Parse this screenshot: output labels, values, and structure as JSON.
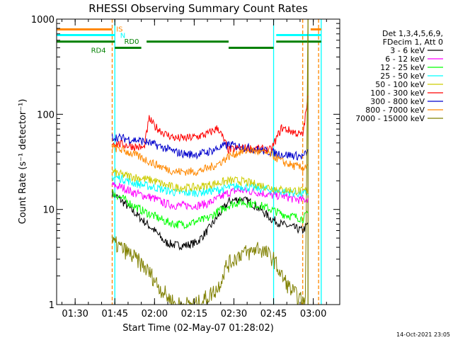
{
  "page": {
    "footer_date": "14-Oct-2021 23:05"
  },
  "chart_data": {
    "type": "line",
    "title": "RHESSI Observing Summary Count Rates",
    "xlabel": "Start Time (02-May-07 01:28:02)",
    "ylabel": "Count Rate (s⁻¹ detector⁻¹)",
    "y_scale": "log",
    "xlim": [
      "01:23",
      "03:10"
    ],
    "ylim": [
      1,
      1000
    ],
    "x_ticks": [
      "01:30",
      "01:45",
      "02:00",
      "02:15",
      "02:30",
      "02:45",
      "03:00"
    ],
    "y_ticks": [
      {
        "value": 1,
        "label": "1"
      },
      {
        "value": 10,
        "label": "10"
      },
      {
        "value": 100,
        "label": "100"
      },
      {
        "value": 1000,
        "label": "1000"
      }
    ],
    "legend": {
      "placement": "right",
      "header": [
        "Det 1,3,4,5,6,9,",
        "FDecim 1, Att 0"
      ]
    },
    "series": [
      {
        "name": "3 - 6 keV",
        "color": "#000000",
        "x": [
          "01:44",
          "01:48",
          "01:52",
          "01:56",
          "02:00",
          "02:04",
          "02:08",
          "02:12",
          "02:16",
          "02:20",
          "02:24",
          "02:28",
          "02:32",
          "02:36",
          "02:40",
          "02:44",
          "02:48",
          "02:52",
          "02:56",
          "02:58"
        ],
        "y": [
          15,
          12,
          9.5,
          7.5,
          6,
          4.5,
          4.2,
          4.2,
          4.5,
          6,
          8.5,
          12,
          13,
          12,
          10,
          8,
          7,
          6.5,
          6,
          7
        ]
      },
      {
        "name": "6 - 12 keV",
        "color": "#ff00ff",
        "x": [
          "01:44",
          "01:48",
          "01:52",
          "01:56",
          "02:00",
          "02:04",
          "02:08",
          "02:12",
          "02:16",
          "02:20",
          "02:24",
          "02:28",
          "02:32",
          "02:36",
          "02:40",
          "02:44",
          "02:48",
          "02:52",
          "02:56",
          "02:58"
        ],
        "y": [
          18,
          17,
          15,
          14,
          13,
          11.5,
          11,
          11,
          11,
          11.5,
          13,
          15,
          16,
          15.5,
          15,
          14,
          14,
          13,
          12.5,
          13
        ]
      },
      {
        "name": "12 - 25 keV",
        "color": "#00ff00",
        "x": [
          "01:44",
          "01:48",
          "01:52",
          "01:56",
          "02:00",
          "02:04",
          "02:08",
          "02:12",
          "02:16",
          "02:20",
          "02:24",
          "02:28",
          "02:32",
          "02:36",
          "02:40",
          "02:44",
          "02:48",
          "02:52",
          "02:56",
          "02:58"
        ],
        "y": [
          15,
          13,
          11,
          9.5,
          8.5,
          7.5,
          7,
          7,
          7.5,
          8,
          9.5,
          11,
          12,
          11.5,
          11,
          10,
          9,
          8.5,
          8,
          9
        ]
      },
      {
        "name": "25 - 50 keV",
        "color": "#00ffff",
        "x": [
          "01:44",
          "01:48",
          "01:52",
          "01:56",
          "02:00",
          "02:04",
          "02:08",
          "02:12",
          "02:16",
          "02:20",
          "02:24",
          "02:28",
          "02:32",
          "02:36",
          "02:40",
          "02:44",
          "02:48",
          "02:52",
          "02:56",
          "02:58"
        ],
        "y": [
          22,
          21,
          19,
          18,
          17,
          16,
          15,
          15,
          15,
          15.5,
          16,
          17,
          17.5,
          17,
          16.5,
          16,
          15.5,
          15,
          14.5,
          15
        ]
      },
      {
        "name": "50 - 100 keV",
        "color": "#cccc00",
        "x": [
          "01:44",
          "01:48",
          "01:52",
          "01:56",
          "02:00",
          "02:04",
          "02:08",
          "02:12",
          "02:16",
          "02:20",
          "02:24",
          "02:28",
          "02:32",
          "02:36",
          "02:40",
          "02:44",
          "02:48",
          "02:52",
          "02:56",
          "02:58"
        ],
        "y": [
          25,
          23,
          22,
          21,
          20,
          18,
          17,
          17,
          17,
          18,
          19,
          20,
          20,
          19,
          18,
          17,
          16,
          16,
          15.5,
          16
        ]
      },
      {
        "name": "100 - 300 keV",
        "color": "#ff0000",
        "x": [
          "01:44",
          "01:48",
          "01:52",
          "01:56",
          "01:58",
          "02:00",
          "02:04",
          "02:08",
          "02:12",
          "02:16",
          "02:20",
          "02:24",
          "02:28",
          "02:32",
          "02:36",
          "02:40",
          "02:44",
          "02:48",
          "02:52",
          "02:56",
          "02:58"
        ],
        "y": [
          50,
          48,
          46,
          44,
          90,
          75,
          62,
          56,
          56,
          58,
          62,
          72,
          42,
          44,
          44,
          43,
          42,
          72,
          66,
          60,
          150
        ]
      },
      {
        "name": "300 - 800 keV",
        "color": "#0000cc",
        "x": [
          "01:44",
          "01:48",
          "01:52",
          "01:56",
          "02:00",
          "02:04",
          "02:08",
          "02:12",
          "02:16",
          "02:20",
          "02:24",
          "02:28",
          "02:32",
          "02:36",
          "02:40",
          "02:44",
          "02:48",
          "02:52",
          "02:56",
          "02:58"
        ],
        "y": [
          58,
          56,
          54,
          52,
          48,
          44,
          40,
          38,
          38,
          40,
          44,
          48,
          46,
          44,
          42,
          40,
          38,
          37,
          36,
          40
        ]
      },
      {
        "name": "800 - 7000 keV",
        "color": "#ff8800",
        "x": [
          "01:44",
          "01:48",
          "01:52",
          "01:56",
          "02:00",
          "02:04",
          "02:08",
          "02:12",
          "02:16",
          "02:20",
          "02:24",
          "02:28",
          "02:32",
          "02:36",
          "02:40",
          "02:44",
          "02:48",
          "02:52",
          "02:56",
          "02:58"
        ],
        "y": [
          45,
          42,
          38,
          34,
          30,
          27,
          25,
          25,
          25,
          27,
          30,
          36,
          40,
          42,
          40,
          38,
          32,
          29,
          27,
          30
        ]
      },
      {
        "name": "7000 - 15000 keV",
        "color": "#808000",
        "x": [
          "01:44",
          "01:47",
          "01:50",
          "01:53",
          "01:56",
          "01:59",
          "02:02",
          "02:05",
          "02:08",
          "02:12",
          "02:16",
          "02:20",
          "02:24",
          "02:27",
          "02:30",
          "02:33",
          "02:36",
          "02:39",
          "02:42",
          "02:45",
          "02:48",
          "02:51",
          "02:54",
          "02:57",
          "02:58"
        ],
        "y": [
          4.5,
          4,
          3.5,
          3,
          2.5,
          2,
          1.5,
          1.2,
          1,
          1,
          1,
          1.2,
          1.5,
          2.5,
          3,
          3.5,
          3.5,
          4,
          3.5,
          3,
          2,
          1.5,
          1.2,
          1,
          1000
        ]
      }
    ],
    "state_bars": [
      {
        "label": "IS",
        "color": "#ff8800",
        "level": 780,
        "segments": [
          [
            "01:23",
            "01:44"
          ],
          [
            "02:59",
            "03:03"
          ]
        ]
      },
      {
        "label": "N",
        "color": "#00ffff",
        "level": 680,
        "segments": [
          [
            "01:23",
            "01:45"
          ],
          [
            "02:46",
            "03:03"
          ]
        ]
      },
      {
        "label": "RD0",
        "color": "#008000",
        "level": 580,
        "segments": [
          [
            "01:23",
            "01:45"
          ],
          [
            "01:57",
            "02:28"
          ],
          [
            "02:46",
            "03:03"
          ]
        ]
      },
      {
        "label": "RD4",
        "color": "#008000",
        "level": 500,
        "segments": [
          [
            "01:45",
            "01:55"
          ],
          [
            "02:28",
            "02:45"
          ]
        ]
      }
    ],
    "vlines": [
      {
        "x": "01:44",
        "color": "#ff8800",
        "style": "dashed"
      },
      {
        "x": "01:45",
        "color": "#00ffff",
        "style": "solid"
      },
      {
        "x": "02:45",
        "color": "#00ffff",
        "style": "solid"
      },
      {
        "x": "02:56",
        "color": "#ff8800",
        "style": "dashed"
      },
      {
        "x": "02:58",
        "color": "#808000",
        "style": "solid"
      },
      {
        "x": "03:02",
        "color": "#ff8800",
        "style": "dashed"
      },
      {
        "x": "03:03",
        "color": "#00ffff",
        "style": "solid"
      }
    ]
  }
}
